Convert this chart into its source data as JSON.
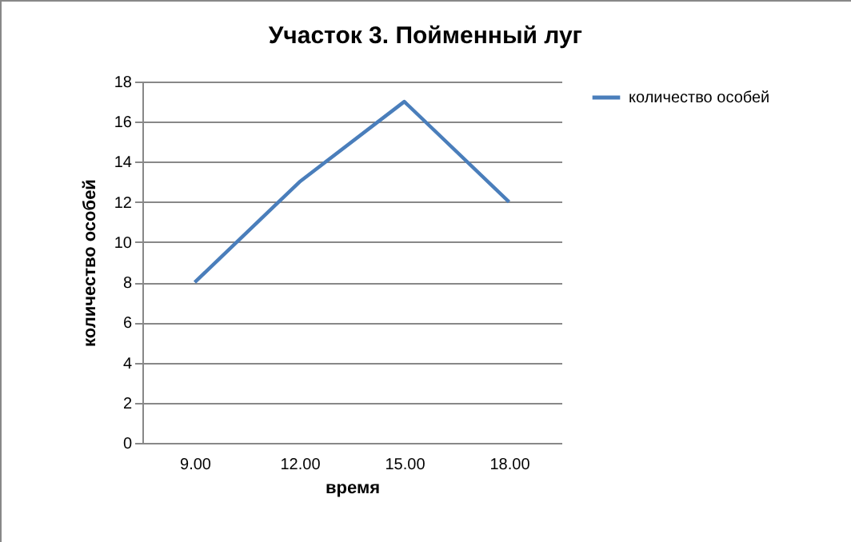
{
  "chart_data": {
    "type": "line",
    "title": "Участок 3. Пойменный луг",
    "xlabel": "время",
    "ylabel": "количество особей",
    "categories": [
      "9.00",
      "12.00",
      "15.00",
      "18.00"
    ],
    "series": [
      {
        "name": "количество особей",
        "color": "#4a7ebb",
        "values": [
          8,
          13,
          17,
          12
        ]
      }
    ],
    "ylim": [
      0,
      18
    ],
    "yticks": [
      0,
      2,
      4,
      6,
      8,
      10,
      12,
      14,
      16,
      18
    ],
    "grid": "y",
    "legend": "right",
    "marker": "none",
    "line_style": "solid"
  }
}
